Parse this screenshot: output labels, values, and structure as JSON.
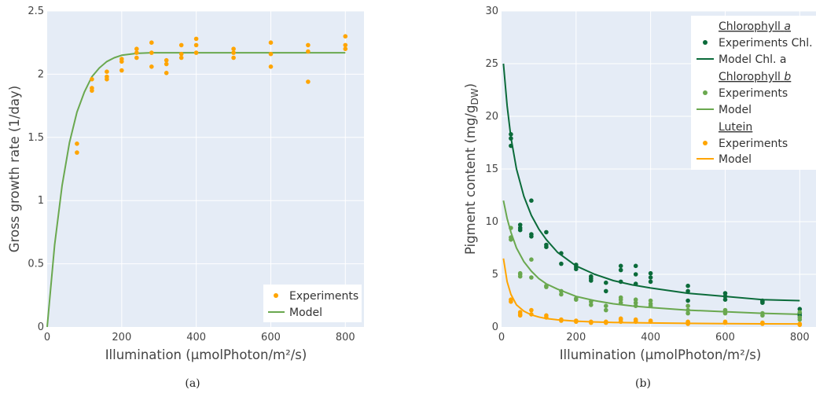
{
  "chart_data": [
    {
      "type": "scatter",
      "caption": "(a)",
      "xlabel": "Illumination (μmolPhoton/m²/s)",
      "ylabel": "Gross growth rate (1/day)",
      "xlim": [
        0,
        850
      ],
      "ylim": [
        0,
        2.5
      ],
      "xticks": [
        "0",
        "200",
        "400",
        "600",
        "800"
      ],
      "yticks": [
        "0",
        "0.5",
        "1",
        "1.5",
        "2",
        "2.5"
      ],
      "grid": true,
      "legend": {
        "placement": "bottom-right",
        "items": [
          "Experiments",
          "Model"
        ]
      },
      "colors": {
        "experiments": "#ffa500",
        "model": "#6aa84f",
        "plot_bg": "#e5ecf6"
      },
      "series": [
        {
          "name": "Experiments",
          "kind": "points",
          "points": [
            [
              80,
              1.45
            ],
            [
              80,
              1.38
            ],
            [
              120,
              1.96
            ],
            [
              120,
              1.89
            ],
            [
              120,
              1.87
            ],
            [
              160,
              2.02
            ],
            [
              160,
              1.98
            ],
            [
              160,
              1.96
            ],
            [
              200,
              2.12
            ],
            [
              200,
              2.1
            ],
            [
              200,
              2.03
            ],
            [
              240,
              2.2
            ],
            [
              240,
              2.17
            ],
            [
              240,
              2.13
            ],
            [
              280,
              2.25
            ],
            [
              280,
              2.17
            ],
            [
              280,
              2.06
            ],
            [
              320,
              2.11
            ],
            [
              320,
              2.08
            ],
            [
              320,
              2.01
            ],
            [
              360,
              2.23
            ],
            [
              360,
              2.16
            ],
            [
              360,
              2.13
            ],
            [
              400,
              2.28
            ],
            [
              400,
              2.23
            ],
            [
              400,
              2.17
            ],
            [
              500,
              2.2
            ],
            [
              500,
              2.17
            ],
            [
              500,
              2.13
            ],
            [
              600,
              2.25
            ],
            [
              600,
              2.16
            ],
            [
              600,
              2.06
            ],
            [
              700,
              2.23
            ],
            [
              700,
              2.18
            ],
            [
              700,
              1.94
            ],
            [
              800,
              2.3
            ],
            [
              800,
              2.23
            ],
            [
              800,
              2.2
            ]
          ]
        },
        {
          "name": "Model",
          "kind": "line",
          "points": [
            [
              0,
              0
            ],
            [
              20,
              0.65
            ],
            [
              40,
              1.12
            ],
            [
              60,
              1.46
            ],
            [
              80,
              1.7
            ],
            [
              100,
              1.86
            ],
            [
              120,
              1.98
            ],
            [
              140,
              2.05
            ],
            [
              160,
              2.1
            ],
            [
              180,
              2.13
            ],
            [
              200,
              2.15
            ],
            [
              240,
              2.165
            ],
            [
              280,
              2.17
            ],
            [
              320,
              2.17
            ],
            [
              400,
              2.17
            ],
            [
              500,
              2.17
            ],
            [
              600,
              2.17
            ],
            [
              700,
              2.17
            ],
            [
              800,
              2.17
            ]
          ]
        }
      ]
    },
    {
      "type": "scatter",
      "caption": "(b)",
      "xlabel": "Illumination (μmolPhoton/m²/s)",
      "ylabel": "Pigment content (mg/g",
      "ylabel_sub": "DW",
      "ylabel_close": ")",
      "xlim": [
        0,
        850
      ],
      "ylim": [
        0,
        30
      ],
      "xticks": [
        "0",
        "200",
        "400",
        "600",
        "800"
      ],
      "yticks": [
        "0",
        "5",
        "10",
        "15",
        "20",
        "25",
        "30"
      ],
      "grid": true,
      "legend": {
        "placement": "top-right",
        "groups": [
          {
            "title": "Chlorophyll",
            "title_italic": "a",
            "items": [
              "Experiments Chl. a",
              "Model Chl. a"
            ]
          },
          {
            "title": "Chlorophyll",
            "title_italic": "b",
            "items": [
              "Experiments",
              "Model"
            ]
          },
          {
            "title": "Lutein",
            "title_italic": "",
            "items": [
              "Experiments",
              "Model"
            ]
          }
        ]
      },
      "colors": {
        "chl_a": "#0b6b3a",
        "chl_b": "#6aa84f",
        "lutein": "#ffa500",
        "plot_bg": "#e5ecf6"
      },
      "series": [
        {
          "name": "Experiments Chl. a",
          "kind": "points",
          "color_key": "chl_a",
          "points": [
            [
              25,
              18.3
            ],
            [
              25,
              17.9
            ],
            [
              25,
              17.2
            ],
            [
              50,
              9.7
            ],
            [
              50,
              9.4
            ],
            [
              50,
              9.2
            ],
            [
              80,
              12.0
            ],
            [
              80,
              8.8
            ],
            [
              80,
              8.6
            ],
            [
              120,
              9.0
            ],
            [
              120,
              7.8
            ],
            [
              120,
              7.6
            ],
            [
              160,
              7.0
            ],
            [
              160,
              6.0
            ],
            [
              200,
              5.9
            ],
            [
              200,
              5.7
            ],
            [
              200,
              5.5
            ],
            [
              240,
              4.8
            ],
            [
              240,
              4.6
            ],
            [
              240,
              4.4
            ],
            [
              280,
              4.2
            ],
            [
              280,
              3.4
            ],
            [
              320,
              5.8
            ],
            [
              320,
              5.4
            ],
            [
              320,
              4.3
            ],
            [
              360,
              5.8
            ],
            [
              360,
              5.0
            ],
            [
              360,
              4.1
            ],
            [
              400,
              5.1
            ],
            [
              400,
              4.7
            ],
            [
              400,
              4.3
            ],
            [
              500,
              3.9
            ],
            [
              500,
              3.4
            ],
            [
              500,
              2.5
            ],
            [
              600,
              3.2
            ],
            [
              600,
              2.9
            ],
            [
              600,
              2.6
            ],
            [
              700,
              2.5
            ],
            [
              700,
              2.4
            ],
            [
              700,
              2.3
            ],
            [
              800,
              1.7
            ],
            [
              800,
              1.3
            ],
            [
              800,
              1.1
            ]
          ]
        },
        {
          "name": "Model Chl. a",
          "kind": "line",
          "color_key": "chl_a",
          "points": [
            [
              5,
              25
            ],
            [
              15,
              21.0
            ],
            [
              25,
              18.0
            ],
            [
              40,
              15.0
            ],
            [
              60,
              12.4
            ],
            [
              80,
              10.6
            ],
            [
              100,
              9.3
            ],
            [
              120,
              8.3
            ],
            [
              150,
              7.1
            ],
            [
              200,
              5.8
            ],
            [
              250,
              5.0
            ],
            [
              300,
              4.4
            ],
            [
              350,
              4.0
            ],
            [
              400,
              3.7
            ],
            [
              500,
              3.2
            ],
            [
              600,
              2.9
            ],
            [
              700,
              2.6
            ],
            [
              800,
              2.5
            ]
          ]
        },
        {
          "name": "Experiments",
          "kind": "points",
          "color_key": "chl_b",
          "points": [
            [
              25,
              9.4
            ],
            [
              25,
              8.5
            ],
            [
              25,
              8.3
            ],
            [
              50,
              5.1
            ],
            [
              50,
              5.0
            ],
            [
              50,
              4.8
            ],
            [
              80,
              6.4
            ],
            [
              80,
              4.7
            ],
            [
              120,
              3.9
            ],
            [
              120,
              3.8
            ],
            [
              160,
              3.4
            ],
            [
              160,
              3.1
            ],
            [
              200,
              2.7
            ],
            [
              200,
              2.6
            ],
            [
              240,
              2.4
            ],
            [
              240,
              2.1
            ],
            [
              280,
              2.0
            ],
            [
              280,
              1.6
            ],
            [
              320,
              2.8
            ],
            [
              320,
              2.6
            ],
            [
              320,
              2.3
            ],
            [
              360,
              2.6
            ],
            [
              360,
              2.3
            ],
            [
              360,
              2.0
            ],
            [
              400,
              2.5
            ],
            [
              400,
              2.2
            ],
            [
              400,
              2.0
            ],
            [
              500,
              2.0
            ],
            [
              500,
              1.6
            ],
            [
              500,
              1.3
            ],
            [
              600,
              1.6
            ],
            [
              600,
              1.3
            ],
            [
              700,
              1.3
            ],
            [
              700,
              1.1
            ],
            [
              800,
              1.4
            ],
            [
              800,
              0.9
            ],
            [
              800,
              0.7
            ]
          ]
        },
        {
          "name": "Model",
          "kind": "line",
          "color_key": "chl_b",
          "points": [
            [
              5,
              12.0
            ],
            [
              15,
              10.3
            ],
            [
              25,
              9.0
            ],
            [
              40,
              7.5
            ],
            [
              60,
              6.2
            ],
            [
              80,
              5.3
            ],
            [
              100,
              4.6
            ],
            [
              120,
              4.1
            ],
            [
              150,
              3.6
            ],
            [
              200,
              2.9
            ],
            [
              250,
              2.5
            ],
            [
              300,
              2.2
            ],
            [
              350,
              2.0
            ],
            [
              400,
              1.85
            ],
            [
              500,
              1.6
            ],
            [
              600,
              1.45
            ],
            [
              700,
              1.3
            ],
            [
              800,
              1.2
            ]
          ]
        },
        {
          "name": "Experiments",
          "kind": "points",
          "color_key": "lutein",
          "points": [
            [
              25,
              2.6
            ],
            [
              25,
              2.4
            ],
            [
              50,
              1.4
            ],
            [
              50,
              1.2
            ],
            [
              50,
              1.1
            ],
            [
              80,
              1.6
            ],
            [
              80,
              1.2
            ],
            [
              120,
              1.1
            ],
            [
              120,
              0.9
            ],
            [
              160,
              0.7
            ],
            [
              160,
              0.6
            ],
            [
              200,
              0.6
            ],
            [
              200,
              0.5
            ],
            [
              240,
              0.5
            ],
            [
              240,
              0.4
            ],
            [
              280,
              0.5
            ],
            [
              280,
              0.4
            ],
            [
              320,
              0.8
            ],
            [
              320,
              0.7
            ],
            [
              320,
              0.5
            ],
            [
              360,
              0.7
            ],
            [
              360,
              0.6
            ],
            [
              360,
              0.5
            ],
            [
              400,
              0.6
            ],
            [
              400,
              0.5
            ],
            [
              500,
              0.5
            ],
            [
              500,
              0.4
            ],
            [
              500,
              0.3
            ],
            [
              600,
              0.5
            ],
            [
              600,
              0.4
            ],
            [
              700,
              0.4
            ],
            [
              700,
              0.3
            ],
            [
              800,
              0.3
            ],
            [
              800,
              0.2
            ]
          ]
        },
        {
          "name": "Model",
          "kind": "line",
          "color_key": "lutein",
          "points": [
            [
              5,
              6.5
            ],
            [
              15,
              4.3
            ],
            [
              25,
              3.1
            ],
            [
              40,
              2.1
            ],
            [
              60,
              1.5
            ],
            [
              80,
              1.15
            ],
            [
              100,
              0.95
            ],
            [
              120,
              0.8
            ],
            [
              150,
              0.68
            ],
            [
              200,
              0.55
            ],
            [
              250,
              0.48
            ],
            [
              300,
              0.43
            ],
            [
              400,
              0.38
            ],
            [
              500,
              0.34
            ],
            [
              600,
              0.32
            ],
            [
              700,
              0.3
            ],
            [
              800,
              0.29
            ]
          ]
        }
      ]
    }
  ]
}
